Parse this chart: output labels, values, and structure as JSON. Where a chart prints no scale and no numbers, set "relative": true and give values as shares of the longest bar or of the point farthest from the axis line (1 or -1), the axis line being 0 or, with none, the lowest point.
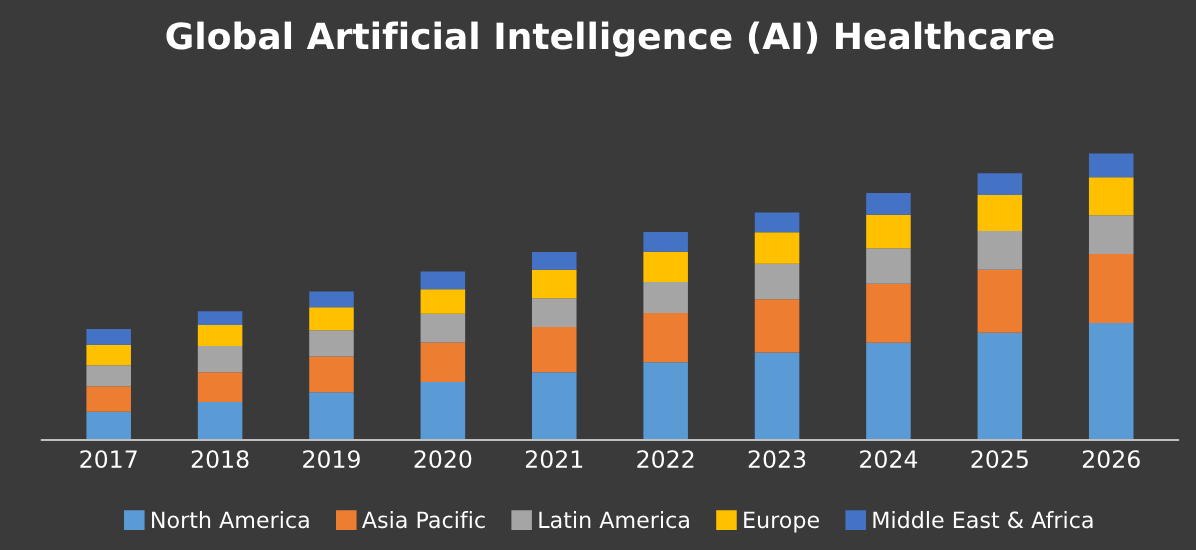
{
  "chart_data": {
    "type": "bar",
    "title": "Global Artificial Intelligence (AI) Healthcare",
    "relative": true,
    "stacked": true,
    "legend": "bottom",
    "grid": false,
    "categories": [
      "2017",
      "2018",
      "2019",
      "2020",
      "2021",
      "2022",
      "2023",
      "2024",
      "2025",
      "2026"
    ],
    "series": [
      {
        "name": "North America",
        "color": "#5b9bd5",
        "values": [
          0.099,
          0.133,
          0.167,
          0.202,
          0.236,
          0.271,
          0.305,
          0.339,
          0.374,
          0.408
        ]
      },
      {
        "name": "Asia Pacific",
        "color": "#ed7d31",
        "values": [
          0.089,
          0.103,
          0.124,
          0.138,
          0.158,
          0.172,
          0.186,
          0.206,
          0.22,
          0.241
        ]
      },
      {
        "name": "Latin America",
        "color": "#a5a5a5",
        "values": [
          0.073,
          0.092,
          0.092,
          0.101,
          0.101,
          0.108,
          0.124,
          0.124,
          0.135,
          0.135
        ]
      },
      {
        "name": "Europe",
        "color": "#ffc000",
        "values": [
          0.071,
          0.073,
          0.08,
          0.085,
          0.099,
          0.106,
          0.11,
          0.117,
          0.126,
          0.133
        ]
      },
      {
        "name": "Middle East & Africa",
        "color": "#4472c4",
        "values": [
          0.055,
          0.048,
          0.055,
          0.062,
          0.062,
          0.069,
          0.069,
          0.076,
          0.076,
          0.083
        ]
      }
    ]
  }
}
